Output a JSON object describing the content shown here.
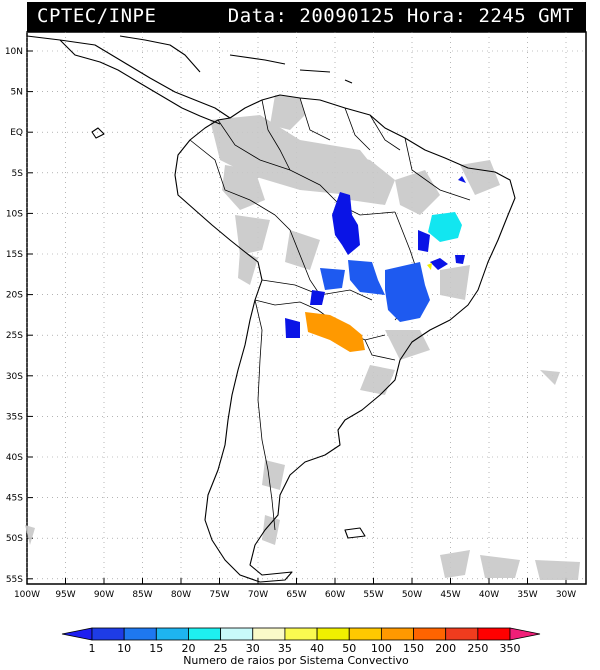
{
  "header": {
    "source": "CPTEC/INPE",
    "stamp": "Data: 20090125 Hora: 2245 GMT"
  },
  "map": {
    "lat_labels": [
      "10N",
      "5N",
      "EQ",
      "5S",
      "10S",
      "15S",
      "20S",
      "25S",
      "30S",
      "35S",
      "40S",
      "45S",
      "50S",
      "55S"
    ],
    "lon_labels": [
      "100W",
      "95W",
      "90W",
      "85W",
      "80W",
      "75W",
      "70W",
      "65W",
      "60W",
      "55W",
      "50W",
      "45W",
      "40W",
      "35W",
      "30W"
    ],
    "gridline_style": "dotted",
    "cell_colors": {
      "dark_blue": "#0a14e6",
      "blue": "#1e5af0",
      "cyan": "#12e6f0",
      "yellow": "#f0f000",
      "orange": "#ff9900",
      "cloud_grey": "#c8c8c8"
    }
  },
  "legend": {
    "ticks": [
      "1",
      "10",
      "15",
      "20",
      "25",
      "30",
      "35",
      "40",
      "50",
      "100",
      "150",
      "200",
      "250",
      "350"
    ],
    "colors": [
      "#1e1ef0",
      "#1e3ce6",
      "#1e78f0",
      "#1eb4f0",
      "#1ef0f0",
      "#c8fafa",
      "#fafac8",
      "#fafa50",
      "#f0f000",
      "#ffc800",
      "#ff9900",
      "#ff6400",
      "#f03c1e",
      "#ff0000",
      "#f01e78"
    ],
    "caption": "Numero de raios por Sistema Convectivo"
  }
}
